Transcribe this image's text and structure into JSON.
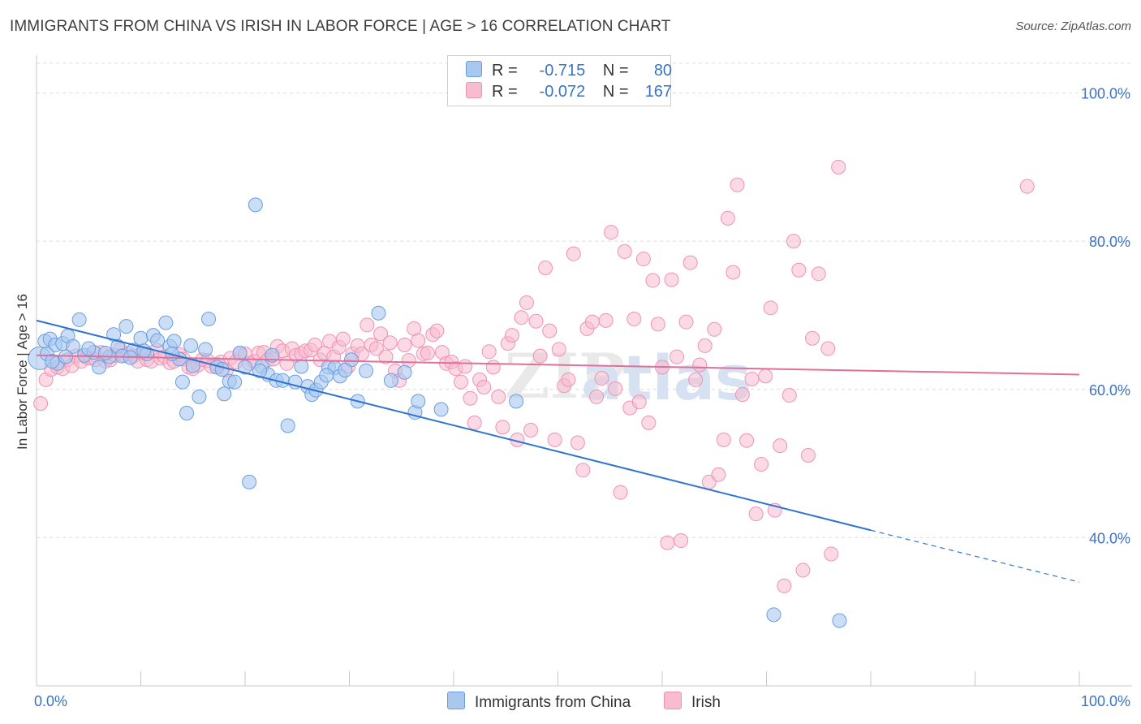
{
  "title": "IMMIGRANTS FROM CHINA VS IRISH IN LABOR FORCE | AGE > 16 CORRELATION CHART",
  "source": "Source: ZipAtlas.com",
  "legend": {
    "china": {
      "r_label": "R =",
      "r_value": "-0.715",
      "n_label": "N =",
      "n_value": "80"
    },
    "irish": {
      "r_label": "R =",
      "r_value": "-0.072",
      "n_label": "N =",
      "n_value": "167"
    }
  },
  "colors": {
    "china_fill": "#a9c8f0",
    "china_stroke": "#6a9ee0",
    "china_line": "#2f74d0",
    "irish_fill": "#f7bcd0",
    "irish_stroke": "#ef93b3",
    "irish_line": "#e0709a",
    "tick_text": "#3b73c4",
    "grid": "#dcdcdc"
  },
  "chart_data": {
    "type": "scatter",
    "title": "IMMIGRANTS FROM CHINA VS IRISH IN LABOR FORCE | AGE > 16 CORRELATION CHART",
    "xlabel": "",
    "ylabel": "In Labor Force | Age > 16",
    "xlim": [
      0,
      100
    ],
    "ylim": [
      20,
      104
    ],
    "x_tick_labels": [
      "0.0%",
      "100.0%"
    ],
    "y_ticks": [
      40,
      60,
      80,
      100
    ],
    "y_tick_labels": [
      "40.0%",
      "60.0%",
      "80.0%",
      "100.0%"
    ],
    "watermark": "ZIPatlas",
    "series": [
      {
        "name": "Immigrants from China",
        "r": -0.715,
        "n": 80,
        "trend": {
          "x0": 0,
          "y0": 69.3,
          "x1": 80,
          "y1": 41.0,
          "dash_to_x": 100,
          "dash_to_y": 34.0
        },
        "points": [
          [
            0.3,
            64.2
          ],
          [
            0.8,
            66.5
          ],
          [
            1.3,
            66.8
          ],
          [
            1.8,
            66.0
          ],
          [
            2.5,
            66.2
          ],
          [
            3.0,
            67.2
          ],
          [
            1.0,
            64.8
          ],
          [
            2.0,
            63.5
          ],
          [
            3.5,
            65.8
          ],
          [
            4.1,
            69.4
          ],
          [
            4.6,
            64.6
          ],
          [
            5.5,
            65.0
          ],
          [
            6.0,
            63.0
          ],
          [
            7.0,
            64.4
          ],
          [
            7.4,
            67.4
          ],
          [
            7.8,
            65.8
          ],
          [
            8.2,
            64.5
          ],
          [
            8.6,
            68.5
          ],
          [
            9.3,
            65.3
          ],
          [
            10.0,
            66.9
          ],
          [
            10.6,
            64.8
          ],
          [
            11.2,
            67.3
          ],
          [
            11.6,
            66.6
          ],
          [
            12.4,
            69.0
          ],
          [
            12.8,
            65.8
          ],
          [
            13.2,
            66.5
          ],
          [
            13.7,
            64.1
          ],
          [
            14.0,
            61.0
          ],
          [
            14.4,
            56.8
          ],
          [
            14.8,
            65.9
          ],
          [
            15.6,
            59.0
          ],
          [
            16.2,
            65.4
          ],
          [
            16.5,
            69.5
          ],
          [
            17.3,
            63.0
          ],
          [
            18.0,
            59.4
          ],
          [
            18.5,
            61.1
          ],
          [
            19.0,
            61.0
          ],
          [
            19.5,
            64.9
          ],
          [
            20.0,
            63.0
          ],
          [
            20.4,
            47.5
          ],
          [
            21.0,
            84.9
          ],
          [
            21.6,
            63.1
          ],
          [
            22.2,
            62.0
          ],
          [
            22.6,
            64.6
          ],
          [
            23.0,
            61.2
          ],
          [
            23.6,
            61.2
          ],
          [
            24.1,
            55.1
          ],
          [
            25.4,
            63.1
          ],
          [
            26.0,
            60.4
          ],
          [
            26.4,
            59.3
          ],
          [
            26.8,
            59.9
          ],
          [
            27.3,
            61.0
          ],
          [
            28.0,
            63.0
          ],
          [
            28.6,
            62.9
          ],
          [
            29.1,
            61.8
          ],
          [
            30.2,
            64.0
          ],
          [
            30.8,
            58.4
          ],
          [
            31.6,
            62.5
          ],
          [
            32.8,
            70.3
          ],
          [
            34.0,
            61.2
          ],
          [
            35.3,
            62.3
          ],
          [
            36.3,
            56.9
          ],
          [
            36.6,
            58.4
          ],
          [
            38.8,
            57.3
          ],
          [
            46.0,
            58.4
          ],
          [
            70.7,
            29.6
          ],
          [
            77.0,
            28.8
          ],
          [
            1.5,
            63.8
          ],
          [
            2.8,
            64.4
          ],
          [
            5.0,
            65.5
          ],
          [
            6.6,
            64.9
          ],
          [
            9.0,
            64.3
          ],
          [
            10.3,
            65.2
          ],
          [
            13.0,
            64.8
          ],
          [
            15.0,
            63.2
          ],
          [
            17.8,
            62.7
          ],
          [
            21.4,
            62.5
          ],
          [
            24.8,
            61.0
          ],
          [
            27.8,
            61.9
          ],
          [
            29.6,
            62.6
          ]
        ]
      },
      {
        "name": "Irish",
        "r": -0.072,
        "n": 167,
        "trend": {
          "x0": 0,
          "y0": 64.6,
          "x1": 100,
          "y1": 62.0
        },
        "points": [
          [
            0.4,
            58.1
          ],
          [
            0.9,
            61.3
          ],
          [
            1.4,
            62.7
          ],
          [
            2.0,
            63.0
          ],
          [
            2.5,
            62.8
          ],
          [
            3.0,
            64.0
          ],
          [
            3.4,
            63.2
          ],
          [
            3.8,
            64.5
          ],
          [
            4.3,
            63.8
          ],
          [
            4.8,
            64.3
          ],
          [
            5.2,
            64.2
          ],
          [
            5.7,
            64.0
          ],
          [
            6.2,
            65.0
          ],
          [
            6.6,
            63.8
          ],
          [
            7.1,
            64.0
          ],
          [
            7.5,
            64.6
          ],
          [
            8.0,
            65.4
          ],
          [
            8.4,
            64.6
          ],
          [
            8.8,
            64.8
          ],
          [
            9.3,
            64.5
          ],
          [
            9.7,
            63.8
          ],
          [
            10.1,
            64.9
          ],
          [
            10.6,
            64.0
          ],
          [
            11.0,
            63.8
          ],
          [
            11.5,
            65.3
          ],
          [
            11.9,
            64.2
          ],
          [
            12.3,
            64.4
          ],
          [
            12.8,
            63.6
          ],
          [
            13.2,
            63.8
          ],
          [
            13.7,
            64.7
          ],
          [
            14.1,
            64.1
          ],
          [
            14.6,
            63.0
          ],
          [
            15.0,
            62.8
          ],
          [
            15.5,
            63.3
          ],
          [
            15.9,
            64.0
          ],
          [
            16.4,
            63.9
          ],
          [
            16.8,
            63.1
          ],
          [
            17.3,
            63.4
          ],
          [
            17.7,
            63.7
          ],
          [
            18.2,
            62.6
          ],
          [
            18.6,
            64.2
          ],
          [
            19.1,
            63.7
          ],
          [
            19.5,
            64.9
          ],
          [
            20.0,
            64.8
          ],
          [
            20.4,
            63.5
          ],
          [
            20.9,
            63.8
          ],
          [
            21.3,
            64.9
          ],
          [
            21.8,
            65.0
          ],
          [
            22.2,
            64.0
          ],
          [
            22.7,
            64.1
          ],
          [
            23.1,
            65.8
          ],
          [
            23.6,
            65.2
          ],
          [
            24.0,
            63.5
          ],
          [
            24.5,
            65.5
          ],
          [
            24.9,
            64.6
          ],
          [
            25.4,
            64.8
          ],
          [
            25.8,
            65.2
          ],
          [
            26.3,
            65.3
          ],
          [
            26.7,
            66.0
          ],
          [
            27.2,
            64.0
          ],
          [
            27.6,
            64.9
          ],
          [
            28.1,
            66.5
          ],
          [
            28.5,
            64.4
          ],
          [
            29.0,
            65.7
          ],
          [
            29.4,
            66.8
          ],
          [
            29.9,
            63.1
          ],
          [
            30.3,
            64.8
          ],
          [
            30.8,
            65.9
          ],
          [
            31.2,
            64.8
          ],
          [
            31.7,
            68.7
          ],
          [
            32.1,
            66.0
          ],
          [
            32.6,
            65.5
          ],
          [
            33.0,
            67.5
          ],
          [
            33.5,
            64.4
          ],
          [
            33.9,
            66.3
          ],
          [
            34.4,
            62.5
          ],
          [
            34.8,
            61.2
          ],
          [
            35.3,
            66.0
          ],
          [
            35.7,
            63.9
          ],
          [
            36.2,
            68.2
          ],
          [
            36.6,
            66.6
          ],
          [
            37.1,
            64.8
          ],
          [
            37.5,
            64.9
          ],
          [
            38.0,
            67.4
          ],
          [
            38.4,
            67.9
          ],
          [
            38.9,
            65.0
          ],
          [
            39.3,
            63.5
          ],
          [
            39.8,
            63.7
          ],
          [
            40.2,
            62.8
          ],
          [
            40.7,
            61.0
          ],
          [
            41.1,
            63.1
          ],
          [
            41.6,
            58.8
          ],
          [
            42.0,
            55.5
          ],
          [
            42.5,
            61.3
          ],
          [
            42.9,
            60.3
          ],
          [
            43.4,
            65.1
          ],
          [
            43.8,
            63.0
          ],
          [
            44.3,
            59.0
          ],
          [
            44.7,
            54.9
          ],
          [
            45.2,
            66.2
          ],
          [
            45.6,
            67.3
          ],
          [
            46.1,
            53.2
          ],
          [
            46.5,
            69.7
          ],
          [
            47.0,
            71.7
          ],
          [
            47.4,
            54.5
          ],
          [
            47.9,
            69.2
          ],
          [
            48.3,
            64.5
          ],
          [
            48.8,
            76.4
          ],
          [
            49.2,
            67.9
          ],
          [
            49.7,
            53.2
          ],
          [
            50.1,
            65.4
          ],
          [
            50.6,
            60.5
          ],
          [
            51.0,
            61.3
          ],
          [
            51.5,
            78.3
          ],
          [
            51.9,
            52.8
          ],
          [
            52.4,
            49.1
          ],
          [
            52.8,
            68.2
          ],
          [
            53.3,
            69.1
          ],
          [
            53.7,
            59.0
          ],
          [
            54.2,
            61.5
          ],
          [
            54.6,
            69.3
          ],
          [
            55.1,
            81.2
          ],
          [
            55.5,
            60.1
          ],
          [
            56.0,
            46.1
          ],
          [
            56.4,
            78.6
          ],
          [
            56.9,
            57.5
          ],
          [
            57.3,
            69.5
          ],
          [
            57.8,
            58.3
          ],
          [
            58.2,
            77.6
          ],
          [
            58.7,
            55.5
          ],
          [
            59.1,
            74.7
          ],
          [
            59.6,
            68.8
          ],
          [
            60.0,
            63.0
          ],
          [
            60.5,
            39.3
          ],
          [
            60.9,
            74.8
          ],
          [
            61.4,
            64.4
          ],
          [
            61.8,
            39.6
          ],
          [
            62.3,
            69.1
          ],
          [
            62.7,
            77.1
          ],
          [
            63.2,
            61.3
          ],
          [
            63.6,
            63.3
          ],
          [
            64.1,
            65.9
          ],
          [
            64.5,
            47.5
          ],
          [
            65.0,
            68.1
          ],
          [
            65.4,
            48.5
          ],
          [
            65.9,
            53.2
          ],
          [
            66.3,
            83.1
          ],
          [
            66.8,
            75.8
          ],
          [
            67.2,
            87.6
          ],
          [
            67.7,
            59.3
          ],
          [
            68.1,
            53.1
          ],
          [
            68.6,
            61.4
          ],
          [
            69.0,
            43.2
          ],
          [
            69.5,
            49.9
          ],
          [
            69.9,
            61.8
          ],
          [
            70.4,
            71.0
          ],
          [
            70.8,
            43.7
          ],
          [
            71.3,
            52.4
          ],
          [
            71.7,
            33.5
          ],
          [
            72.2,
            59.2
          ],
          [
            72.6,
            80.0
          ],
          [
            73.1,
            76.1
          ],
          [
            73.5,
            35.6
          ],
          [
            74.0,
            51.1
          ],
          [
            74.4,
            66.9
          ],
          [
            75.9,
            65.5
          ],
          [
            76.9,
            90.0
          ],
          [
            76.2,
            37.8
          ],
          [
            75.0,
            75.6
          ],
          [
            95.0,
            87.4
          ]
        ]
      }
    ]
  },
  "bottom_legend": {
    "china": "Immigrants from China",
    "irish": "Irish"
  }
}
